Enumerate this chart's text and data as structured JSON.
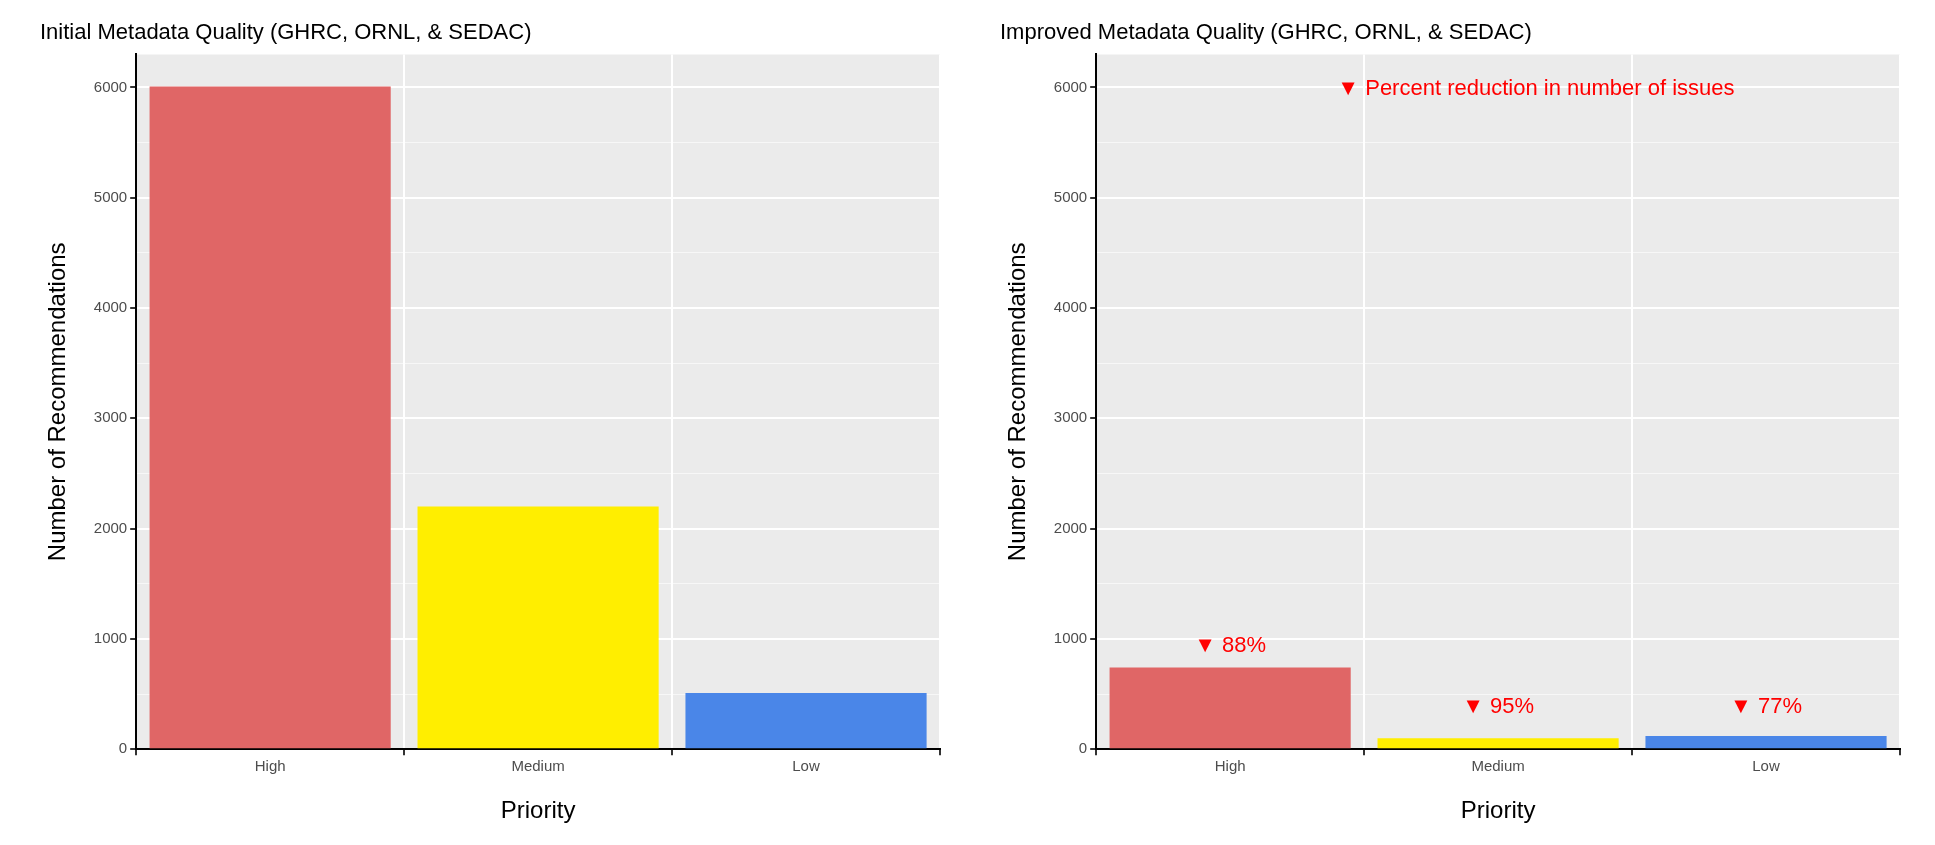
{
  "chart_data": [
    {
      "type": "bar",
      "title": "Initial Metadata Quality (GHRC, ORNL, & SEDAC)",
      "xlabel": "Priority",
      "ylabel": "Number of Recommendations",
      "categories": [
        "High",
        "Medium",
        "Low"
      ],
      "values": [
        6010,
        2200,
        510
      ],
      "colors": [
        "#e06666",
        "#ffee00",
        "#4a86e8"
      ],
      "ylim": [
        0,
        6300
      ],
      "yticks": [
        0,
        {
          "value": 500,
          "label": null
        },
        1000,
        {
          "value": 1500,
          "label": null
        },
        2000,
        {
          "value": 2500,
          "label": null
        },
        3000,
        {
          "value": 3500,
          "label": null
        },
        4000,
        {
          "value": 4500,
          "label": null
        },
        5000,
        {
          "value": 5500,
          "label": null
        },
        6000
      ],
      "grid": true
    },
    {
      "type": "bar",
      "title": "Improved Metadata Quality (GHRC, ORNL, & SEDAC)",
      "xlabel": "Priority",
      "ylabel": "Number of Recommendations",
      "categories": [
        "High",
        "Medium",
        "Low"
      ],
      "values": [
        740,
        100,
        120
      ],
      "colors": [
        "#e06666",
        "#ffee00",
        "#4a86e8"
      ],
      "ylim": [
        0,
        6300
      ],
      "yticks": [
        0,
        {
          "value": 500,
          "label": null
        },
        1000,
        {
          "value": 1500,
          "label": null
        },
        2000,
        {
          "value": 2500,
          "label": null
        },
        3000,
        {
          "value": 3500,
          "label": null
        },
        4000,
        {
          "value": 4500,
          "label": null
        },
        5000,
        {
          "value": 5500,
          "label": null
        },
        6000
      ],
      "grid": true,
      "annotations": [
        "▼ Percent reduction in number of issues",
        "▼ 88%",
        "▼ 95%",
        "▼ 77%"
      ]
    }
  ]
}
